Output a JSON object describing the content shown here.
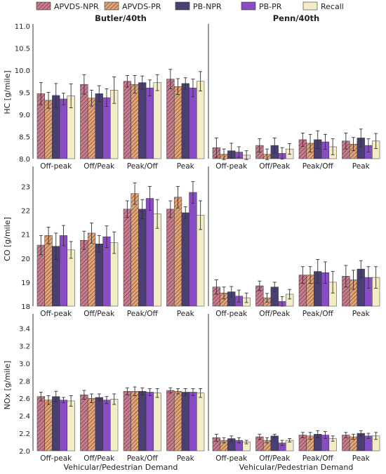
{
  "chart_data": {
    "type": "bar",
    "legend": {
      "placement": "top",
      "entries": [
        {
          "name": "APVDS-NPR",
          "color": "#c97a8c",
          "hatch": true
        },
        {
          "name": "APVDS-PR",
          "color": "#e3a375",
          "hatch": true
        },
        {
          "name": "PB-NPR",
          "color": "#4a3f73",
          "hatch": false
        },
        {
          "name": "PB-PR",
          "color": "#8a4cc4",
          "hatch": false
        },
        {
          "name": "Recall",
          "color": "#f3edc6",
          "hatch": false
        }
      ]
    },
    "categories": [
      "Off-peak",
      "Off/Peak",
      "Peak/Off",
      "Peak"
    ],
    "column_titles": [
      "Butler/40th",
      "Penn/40th"
    ],
    "xlabel": "Vehicular/Pedestrian Demand",
    "rows": [
      {
        "ylabel": "HC [g/mile]",
        "ylim": [
          8.0,
          11.0
        ],
        "yticks": [
          "8.0",
          "8.5",
          "9.0",
          "9.5",
          "10.0",
          "10.5",
          "11.0"
        ],
        "panels": [
          {
            "title": "Butler/40th",
            "series": [
              {
                "name": "APVDS-NPR",
                "values": [
                  9.47,
                  9.68,
                  9.75,
                  9.8
                ],
                "errors": [
                  0.25,
                  0.22,
                  0.13,
                  0.22
                ]
              },
              {
                "name": "APVDS-PR",
                "values": [
                  9.32,
                  9.37,
                  9.68,
                  9.63
                ],
                "errors": [
                  0.18,
                  0.18,
                  0.2,
                  0.18
                ]
              },
              {
                "name": "PB-NPR",
                "values": [
                  9.43,
                  9.47,
                  9.72,
                  9.7
                ],
                "errors": [
                  0.27,
                  0.18,
                  0.15,
                  0.13
                ]
              },
              {
                "name": "PB-PR",
                "values": [
                  9.35,
                  9.38,
                  9.6,
                  9.6
                ],
                "errors": [
                  0.13,
                  0.2,
                  0.18,
                  0.2
                ]
              },
              {
                "name": "Recall",
                "values": [
                  9.42,
                  9.55,
                  9.72,
                  9.75
                ],
                "errors": [
                  0.27,
                  0.3,
                  0.18,
                  0.22
                ]
              }
            ]
          },
          {
            "title": "Penn/40th",
            "series": [
              {
                "name": "APVDS-NPR",
                "values": [
                  8.25,
                  8.3,
                  8.43,
                  8.4
                ],
                "errors": [
                  0.22,
                  0.15,
                  0.15,
                  0.18
                ]
              },
              {
                "name": "APVDS-PR",
                "values": [
                  8.1,
                  8.1,
                  8.35,
                  8.33
                ],
                "errors": [
                  0.12,
                  0.12,
                  0.2,
                  0.15
                ]
              },
              {
                "name": "PB-NPR",
                "values": [
                  8.18,
                  8.3,
                  8.43,
                  8.47
                ],
                "errors": [
                  0.17,
                  0.17,
                  0.2,
                  0.2
                ]
              },
              {
                "name": "PB-PR",
                "values": [
                  8.15,
                  8.12,
                  8.38,
                  8.3
                ],
                "errors": [
                  0.12,
                  0.13,
                  0.17,
                  0.15
                ]
              },
              {
                "name": "Recall",
                "values": [
                  8.08,
                  8.22,
                  8.27,
                  8.4
                ],
                "errors": [
                  0.1,
                  0.12,
                  0.18,
                  0.17
                ]
              }
            ]
          }
        ]
      },
      {
        "ylabel": "CO [g/mile]",
        "ylim": [
          18,
          23.6
        ],
        "yticks": [
          "18",
          "19",
          "20",
          "21",
          "22",
          "23"
        ],
        "panels": [
          {
            "title": "Butler/40th",
            "series": [
              {
                "name": "APVDS-NPR",
                "values": [
                  20.55,
                  20.75,
                  22.05,
                  22.05
                ],
                "errors": [
                  0.4,
                  0.38,
                  0.35,
                  0.35
                ]
              },
              {
                "name": "APVDS-PR",
                "values": [
                  20.95,
                  21.05,
                  22.7,
                  22.55
                ],
                "errors": [
                  0.35,
                  0.42,
                  0.45,
                  0.45
                ]
              },
              {
                "name": "PB-NPR",
                "values": [
                  20.5,
                  20.6,
                  22.05,
                  21.9
                ],
                "errors": [
                  0.55,
                  0.35,
                  0.4,
                  0.25
                ]
              },
              {
                "name": "PB-PR",
                "values": [
                  20.95,
                  20.9,
                  22.5,
                  22.75
                ],
                "errors": [
                  0.42,
                  0.45,
                  0.5,
                  0.45
                ]
              },
              {
                "name": "Recall",
                "values": [
                  20.35,
                  20.65,
                  21.85,
                  21.8
                ],
                "errors": [
                  0.35,
                  0.45,
                  0.6,
                  0.6
                ]
              }
            ]
          },
          {
            "title": "Penn/40th",
            "series": [
              {
                "name": "APVDS-NPR",
                "values": [
                  18.8,
                  18.85,
                  19.3,
                  19.25
                ],
                "errors": [
                  0.3,
                  0.2,
                  0.35,
                  0.45
                ]
              },
              {
                "name": "APVDS-PR",
                "values": [
                  18.55,
                  18.35,
                  19.3,
                  19.1
                ],
                "errors": [
                  0.25,
                  0.18,
                  0.35,
                  0.4
                ]
              },
              {
                "name": "PB-NPR",
                "values": [
                  18.6,
                  18.8,
                  19.45,
                  19.55
                ],
                "errors": [
                  0.22,
                  0.2,
                  0.5,
                  0.35
                ]
              },
              {
                "name": "PB-PR",
                "values": [
                  18.42,
                  18.2,
                  19.4,
                  19.2
                ],
                "errors": [
                  0.25,
                  0.2,
                  0.45,
                  0.45
                ]
              },
              {
                "name": "Recall",
                "values": [
                  18.35,
                  18.5,
                  19.0,
                  19.2
                ],
                "errors": [
                  0.2,
                  0.2,
                  0.45,
                  0.45
                ]
              }
            ]
          }
        ]
      },
      {
        "ylabel": "NOx [g/mile]",
        "ylim": [
          2.0,
          3.5
        ],
        "yticks": [
          "2.0",
          "2.2",
          "2.4",
          "2.6",
          "2.8",
          "3.0",
          "3.2",
          "3.4"
        ],
        "panels": [
          {
            "title": "Butler/40th",
            "series": [
              {
                "name": "APVDS-NPR",
                "values": [
                  2.62,
                  2.64,
                  2.68,
                  2.69
                ],
                "errors": [
                  0.05,
                  0.05,
                  0.04,
                  0.03
                ]
              },
              {
                "name": "APVDS-PR",
                "values": [
                  2.58,
                  2.6,
                  2.68,
                  2.68
                ],
                "errors": [
                  0.05,
                  0.05,
                  0.05,
                  0.03
                ]
              },
              {
                "name": "PB-NPR",
                "values": [
                  2.62,
                  2.61,
                  2.68,
                  2.67
                ],
                "errors": [
                  0.06,
                  0.04,
                  0.04,
                  0.04
                ]
              },
              {
                "name": "PB-PR",
                "values": [
                  2.58,
                  2.58,
                  2.67,
                  2.67
                ],
                "errors": [
                  0.03,
                  0.04,
                  0.04,
                  0.04
                ]
              },
              {
                "name": "Recall",
                "values": [
                  2.57,
                  2.59,
                  2.66,
                  2.66
                ],
                "errors": [
                  0.06,
                  0.06,
                  0.05,
                  0.05
                ]
              }
            ]
          },
          {
            "title": "Penn/40th",
            "series": [
              {
                "name": "APVDS-NPR",
                "values": [
                  2.15,
                  2.16,
                  2.18,
                  2.18
                ],
                "errors": [
                  0.04,
                  0.03,
                  0.03,
                  0.03
                ]
              },
              {
                "name": "APVDS-PR",
                "values": [
                  2.12,
                  2.12,
                  2.17,
                  2.16
                ],
                "errors": [
                  0.03,
                  0.03,
                  0.04,
                  0.03
                ]
              },
              {
                "name": "PB-NPR",
                "values": [
                  2.14,
                  2.17,
                  2.19,
                  2.2
                ],
                "errors": [
                  0.03,
                  0.02,
                  0.04,
                  0.03
                ]
              },
              {
                "name": "PB-PR",
                "values": [
                  2.12,
                  2.09,
                  2.18,
                  2.17
                ],
                "errors": [
                  0.03,
                  0.03,
                  0.04,
                  0.03
                ]
              },
              {
                "name": "Recall",
                "values": [
                  2.1,
                  2.12,
                  2.14,
                  2.17
                ],
                "errors": [
                  0.02,
                  0.02,
                  0.03,
                  0.04
                ]
              }
            ]
          }
        ]
      }
    ]
  }
}
